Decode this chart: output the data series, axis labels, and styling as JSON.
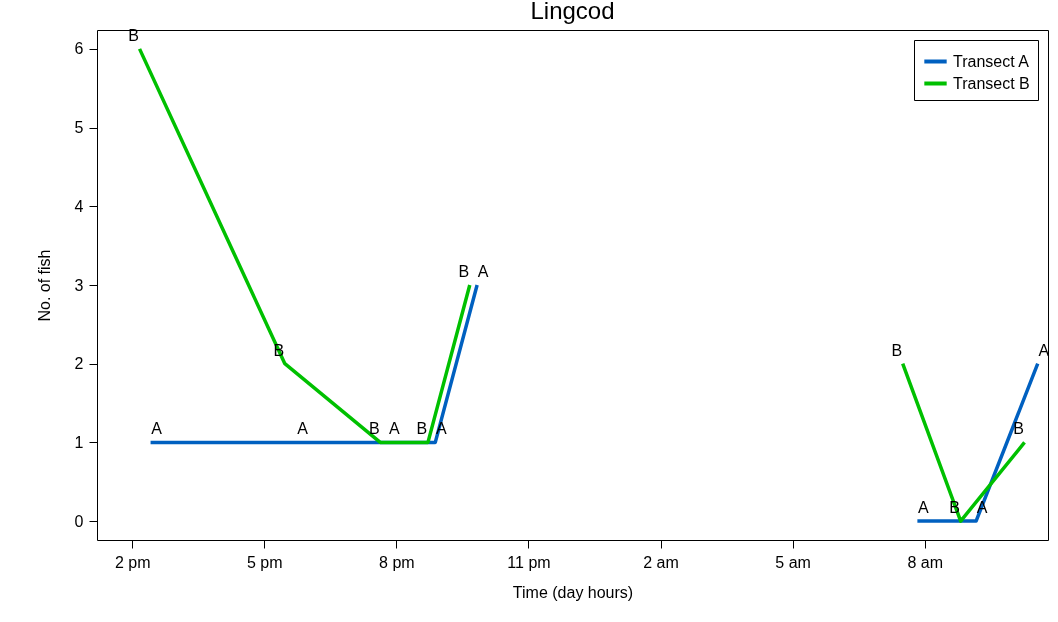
{
  "chart_data": {
    "type": "line",
    "title": "Lingcod",
    "xlabel": "Time (day hours)",
    "ylabel": "No. of fish",
    "xlim": [
      "--01-01T13:12",
      "--01-02T10:48"
    ],
    "ylim": [
      -0.24,
      6.24
    ],
    "xticks": [
      {
        "value": "--01-01T14:00",
        "label": "2 pm"
      },
      {
        "value": "--01-01T17:00",
        "label": "5 pm"
      },
      {
        "value": "--01-01T20:00",
        "label": "8 pm"
      },
      {
        "value": "--01-01T23:00",
        "label": "11 pm"
      },
      {
        "value": "--01-02T02:00",
        "label": "2 am"
      },
      {
        "value": "--01-02T05:00",
        "label": "5 am"
      },
      {
        "value": "--01-02T08:00",
        "label": "8 am"
      }
    ],
    "yticks": [
      0,
      1,
      2,
      3,
      4,
      5,
      6
    ],
    "legend": "top right",
    "grid": false,
    "marker": "none",
    "line_style": "solid",
    "series": [
      {
        "name": "Transect A",
        "color": "#0060c0",
        "x": [
          "--01-01T14:25",
          "--01-01T17:44",
          "--01-01T19:49",
          "--01-01T20:53",
          "--01-01T21:50",
          "--01-02T02:00",
          "--01-02T07:50",
          "--01-02T09:10",
          "--01-02T10:34"
        ],
        "values": [
          1,
          1,
          1,
          1,
          3,
          null,
          0,
          0,
          2
        ],
        "value_labels": [
          "A",
          "A",
          "A",
          "A",
          "A",
          null,
          "A",
          "A",
          "A"
        ]
      },
      {
        "name": "Transect B",
        "color": "#00c000",
        "x": [
          "--01-01T14:10",
          "--01-01T17:28",
          "--01-01T19:38",
          "--01-01T20:43",
          "--01-01T21:40",
          "--01-02T02:00",
          "--01-02T07:30",
          "--01-02T08:49",
          "--01-02T10:16"
        ],
        "values": [
          6,
          2,
          1,
          1,
          3,
          null,
          2,
          0,
          1
        ],
        "value_labels": [
          "B",
          "B",
          "B",
          "B",
          "B",
          null,
          "B",
          "B",
          "B"
        ]
      }
    ]
  }
}
